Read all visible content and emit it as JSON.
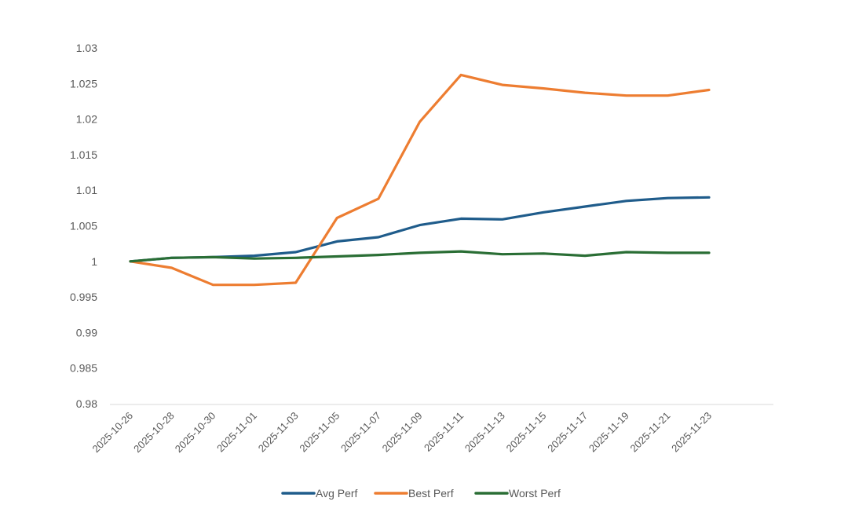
{
  "chart_data": {
    "type": "line",
    "title": "",
    "xlabel": "",
    "ylabel": "",
    "ylim": [
      0.98,
      1.03
    ],
    "yticks": [
      "0.98",
      "0.985",
      "0.99",
      "0.995",
      "1",
      "1.005",
      "1.01",
      "1.015",
      "1.02",
      "1.025",
      "1.03"
    ],
    "ytick_values": [
      0.98,
      0.985,
      0.99,
      0.995,
      1,
      1.005,
      1.01,
      1.015,
      1.02,
      1.025,
      1.03
    ],
    "grid": false,
    "legend_position": "bottom",
    "categories": [
      "2025-10-26",
      "2025-10-28",
      "2025-10-30",
      "2025-11-01",
      "2025-11-03",
      "2025-11-05",
      "2025-11-07",
      "2025-11-09",
      "2025-11-11",
      "2025-11-13",
      "2025-11-15",
      "2025-11-17",
      "2025-11-19",
      "2025-11-21",
      "2025-11-23"
    ],
    "series": [
      {
        "name": "Avg Perf",
        "color": "#1f5c8b",
        "values": [
          1.0,
          1.0005,
          1.0006,
          1.0008,
          1.0013,
          1.0028,
          1.0034,
          1.0051,
          1.006,
          1.0059,
          1.0069,
          1.0077,
          1.0085,
          1.0089,
          1.009
        ]
      },
      {
        "name": "Best Perf",
        "color": "#ed7d31",
        "values": [
          1.0,
          0.9991,
          0.9967,
          0.9967,
          0.997,
          1.0061,
          1.0088,
          1.0196,
          1.0262,
          1.0248,
          1.0243,
          1.0237,
          1.0233,
          1.0233,
          1.0241
        ]
      },
      {
        "name": "Worst Perf",
        "color": "#2a6e35",
        "values": [
          1.0,
          1.0005,
          1.0006,
          1.0004,
          1.0005,
          1.0007,
          1.0009,
          1.0012,
          1.0014,
          1.001,
          1.0011,
          1.0008,
          1.0013,
          1.0012,
          1.0012
        ]
      }
    ]
  }
}
